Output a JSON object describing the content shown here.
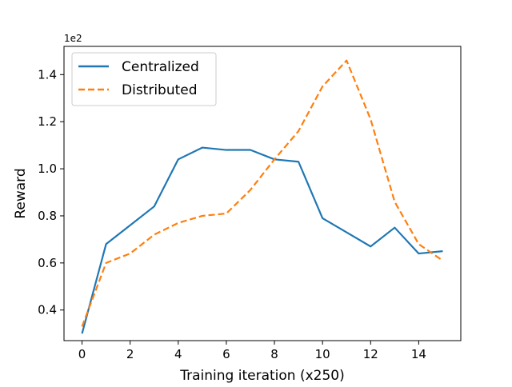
{
  "chart_data": {
    "type": "line",
    "title": "",
    "xlabel": "Training iteration (x250)",
    "ylabel": "Reward",
    "y_offset_label": "1e2",
    "xlim": [
      -0.75,
      15.75
    ],
    "ylim": [
      0.27,
      1.52
    ],
    "xticks": [
      0,
      2,
      4,
      6,
      8,
      10,
      12,
      14
    ],
    "xtick_labels": [
      "0",
      "2",
      "4",
      "6",
      "8",
      "10",
      "12",
      "14"
    ],
    "yticks": [
      0.4,
      0.6,
      0.8,
      1.0,
      1.2,
      1.4
    ],
    "ytick_labels": [
      "0.4",
      "0.6",
      "0.8",
      "1.0",
      "1.2",
      "1.4"
    ],
    "grid": false,
    "legend_position": "top-left",
    "x": [
      0,
      1,
      2,
      3,
      4,
      5,
      6,
      7,
      8,
      9,
      10,
      11,
      12,
      13,
      14,
      15
    ],
    "series": [
      {
        "name": "Centralized",
        "color": "#1f77b4",
        "linestyle": "solid",
        "values": [
          0.3,
          0.68,
          0.76,
          0.84,
          1.04,
          1.09,
          1.08,
          1.08,
          1.04,
          1.03,
          0.79,
          0.73,
          0.67,
          0.75,
          0.64,
          0.65
        ]
      },
      {
        "name": "Distributed",
        "color": "#ff7f0e",
        "linestyle": "dashed",
        "values": [
          0.33,
          0.6,
          0.64,
          0.72,
          0.77,
          0.8,
          0.81,
          0.91,
          1.04,
          1.16,
          1.35,
          1.46,
          1.21,
          0.86,
          0.68,
          0.61
        ]
      }
    ]
  }
}
